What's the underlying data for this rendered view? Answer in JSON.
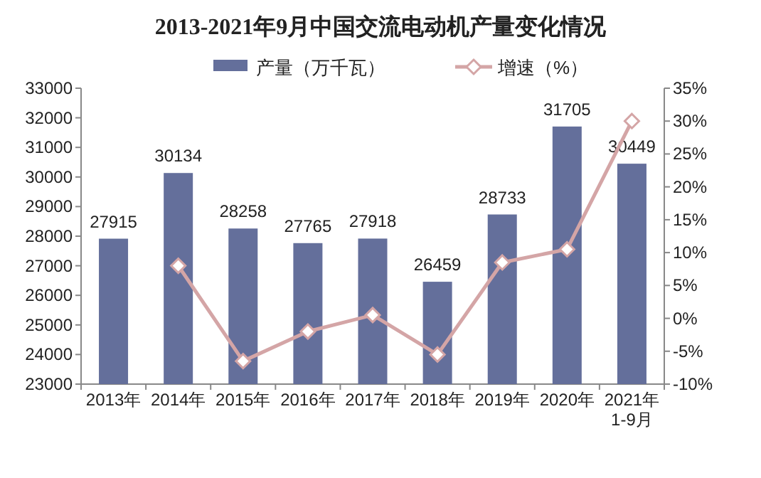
{
  "chart_data": {
    "type": "bar",
    "title": "2013-2021年9月中国交流电动机产量变化情况",
    "categories": [
      "2013年",
      "2014年",
      "2015年",
      "2016年",
      "2017年",
      "2018年",
      "2019年",
      "2020年",
      "2021年\n1-9月"
    ],
    "series": [
      {
        "name": "产量（万千瓦）",
        "color": "#646f9b",
        "values": [
          27915,
          30134,
          28258,
          27765,
          27918,
          26459,
          28733,
          31705,
          30449
        ],
        "value_labels": [
          "27915",
          "30134",
          "28258",
          "27765",
          "27918",
          "26459",
          "28733",
          "31705",
          "30449"
        ]
      },
      {
        "name": "增速（%）",
        "type": "line",
        "axis": "y2",
        "color": "#d4a5a6",
        "marker": "diamond",
        "values": [
          null,
          8,
          -6.5,
          -2,
          0.5,
          -5.5,
          8.5,
          10.5,
          30
        ]
      }
    ],
    "ylim": [
      23000,
      33000
    ],
    "yticks": [
      23000,
      24000,
      25000,
      26000,
      27000,
      28000,
      29000,
      30000,
      31000,
      32000,
      33000
    ],
    "y2lim": [
      -10,
      35
    ],
    "y2ticks": [
      {
        "value": -10,
        "label": "-10%"
      },
      {
        "value": -5,
        "label": "-5%"
      },
      {
        "value": 0,
        "label": "0%"
      },
      {
        "value": 5,
        "label": "5%"
      },
      {
        "value": 10,
        "label": "10%"
      },
      {
        "value": 15,
        "label": "15%"
      },
      {
        "value": 20,
        "label": "20%"
      },
      {
        "value": 25,
        "label": "25%"
      },
      {
        "value": 30,
        "label": "30%"
      },
      {
        "value": 35,
        "label": "35%"
      }
    ],
    "legend": "top",
    "grid": false
  }
}
